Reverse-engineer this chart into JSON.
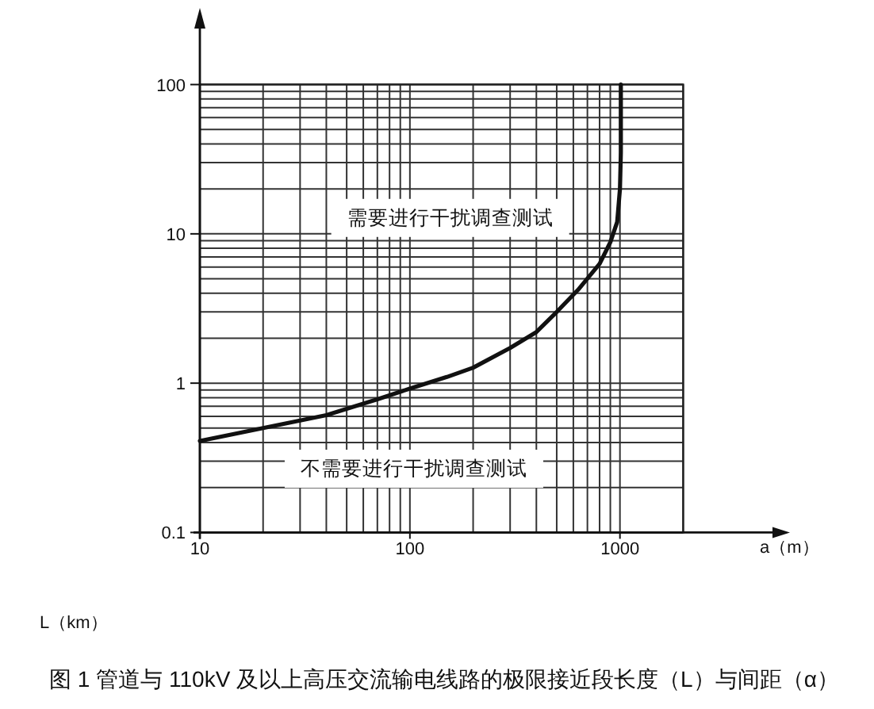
{
  "chart_data": {
    "type": "line",
    "title": "图 1 管道与 110kV 及以上高压交流输电线路的极限接近段长度（L）与间距（α）",
    "xlabel": "a（m）",
    "ylabel": "L（km）",
    "x": [
      10,
      20,
      40,
      70,
      100,
      150,
      200,
      300,
      400,
      500,
      630,
      800,
      900,
      970,
      1000,
      1010,
      1010
    ],
    "values": [
      0.41,
      0.5,
      0.61,
      0.78,
      0.92,
      1.1,
      1.27,
      1.72,
      2.2,
      3.0,
      4.2,
      6.3,
      8.8,
      12,
      20,
      35,
      100
    ],
    "color": "#111111",
    "log": "xy",
    "xlim": [
      10,
      2000
    ],
    "ylim": [
      0.1,
      100
    ],
    "xticks": [
      10,
      100,
      1000
    ],
    "yticks": [
      0.1,
      1,
      10,
      100
    ],
    "grid": true,
    "annotations": [
      "需要进行干扰调查测试",
      "不需要进行干扰调查测试"
    ]
  }
}
